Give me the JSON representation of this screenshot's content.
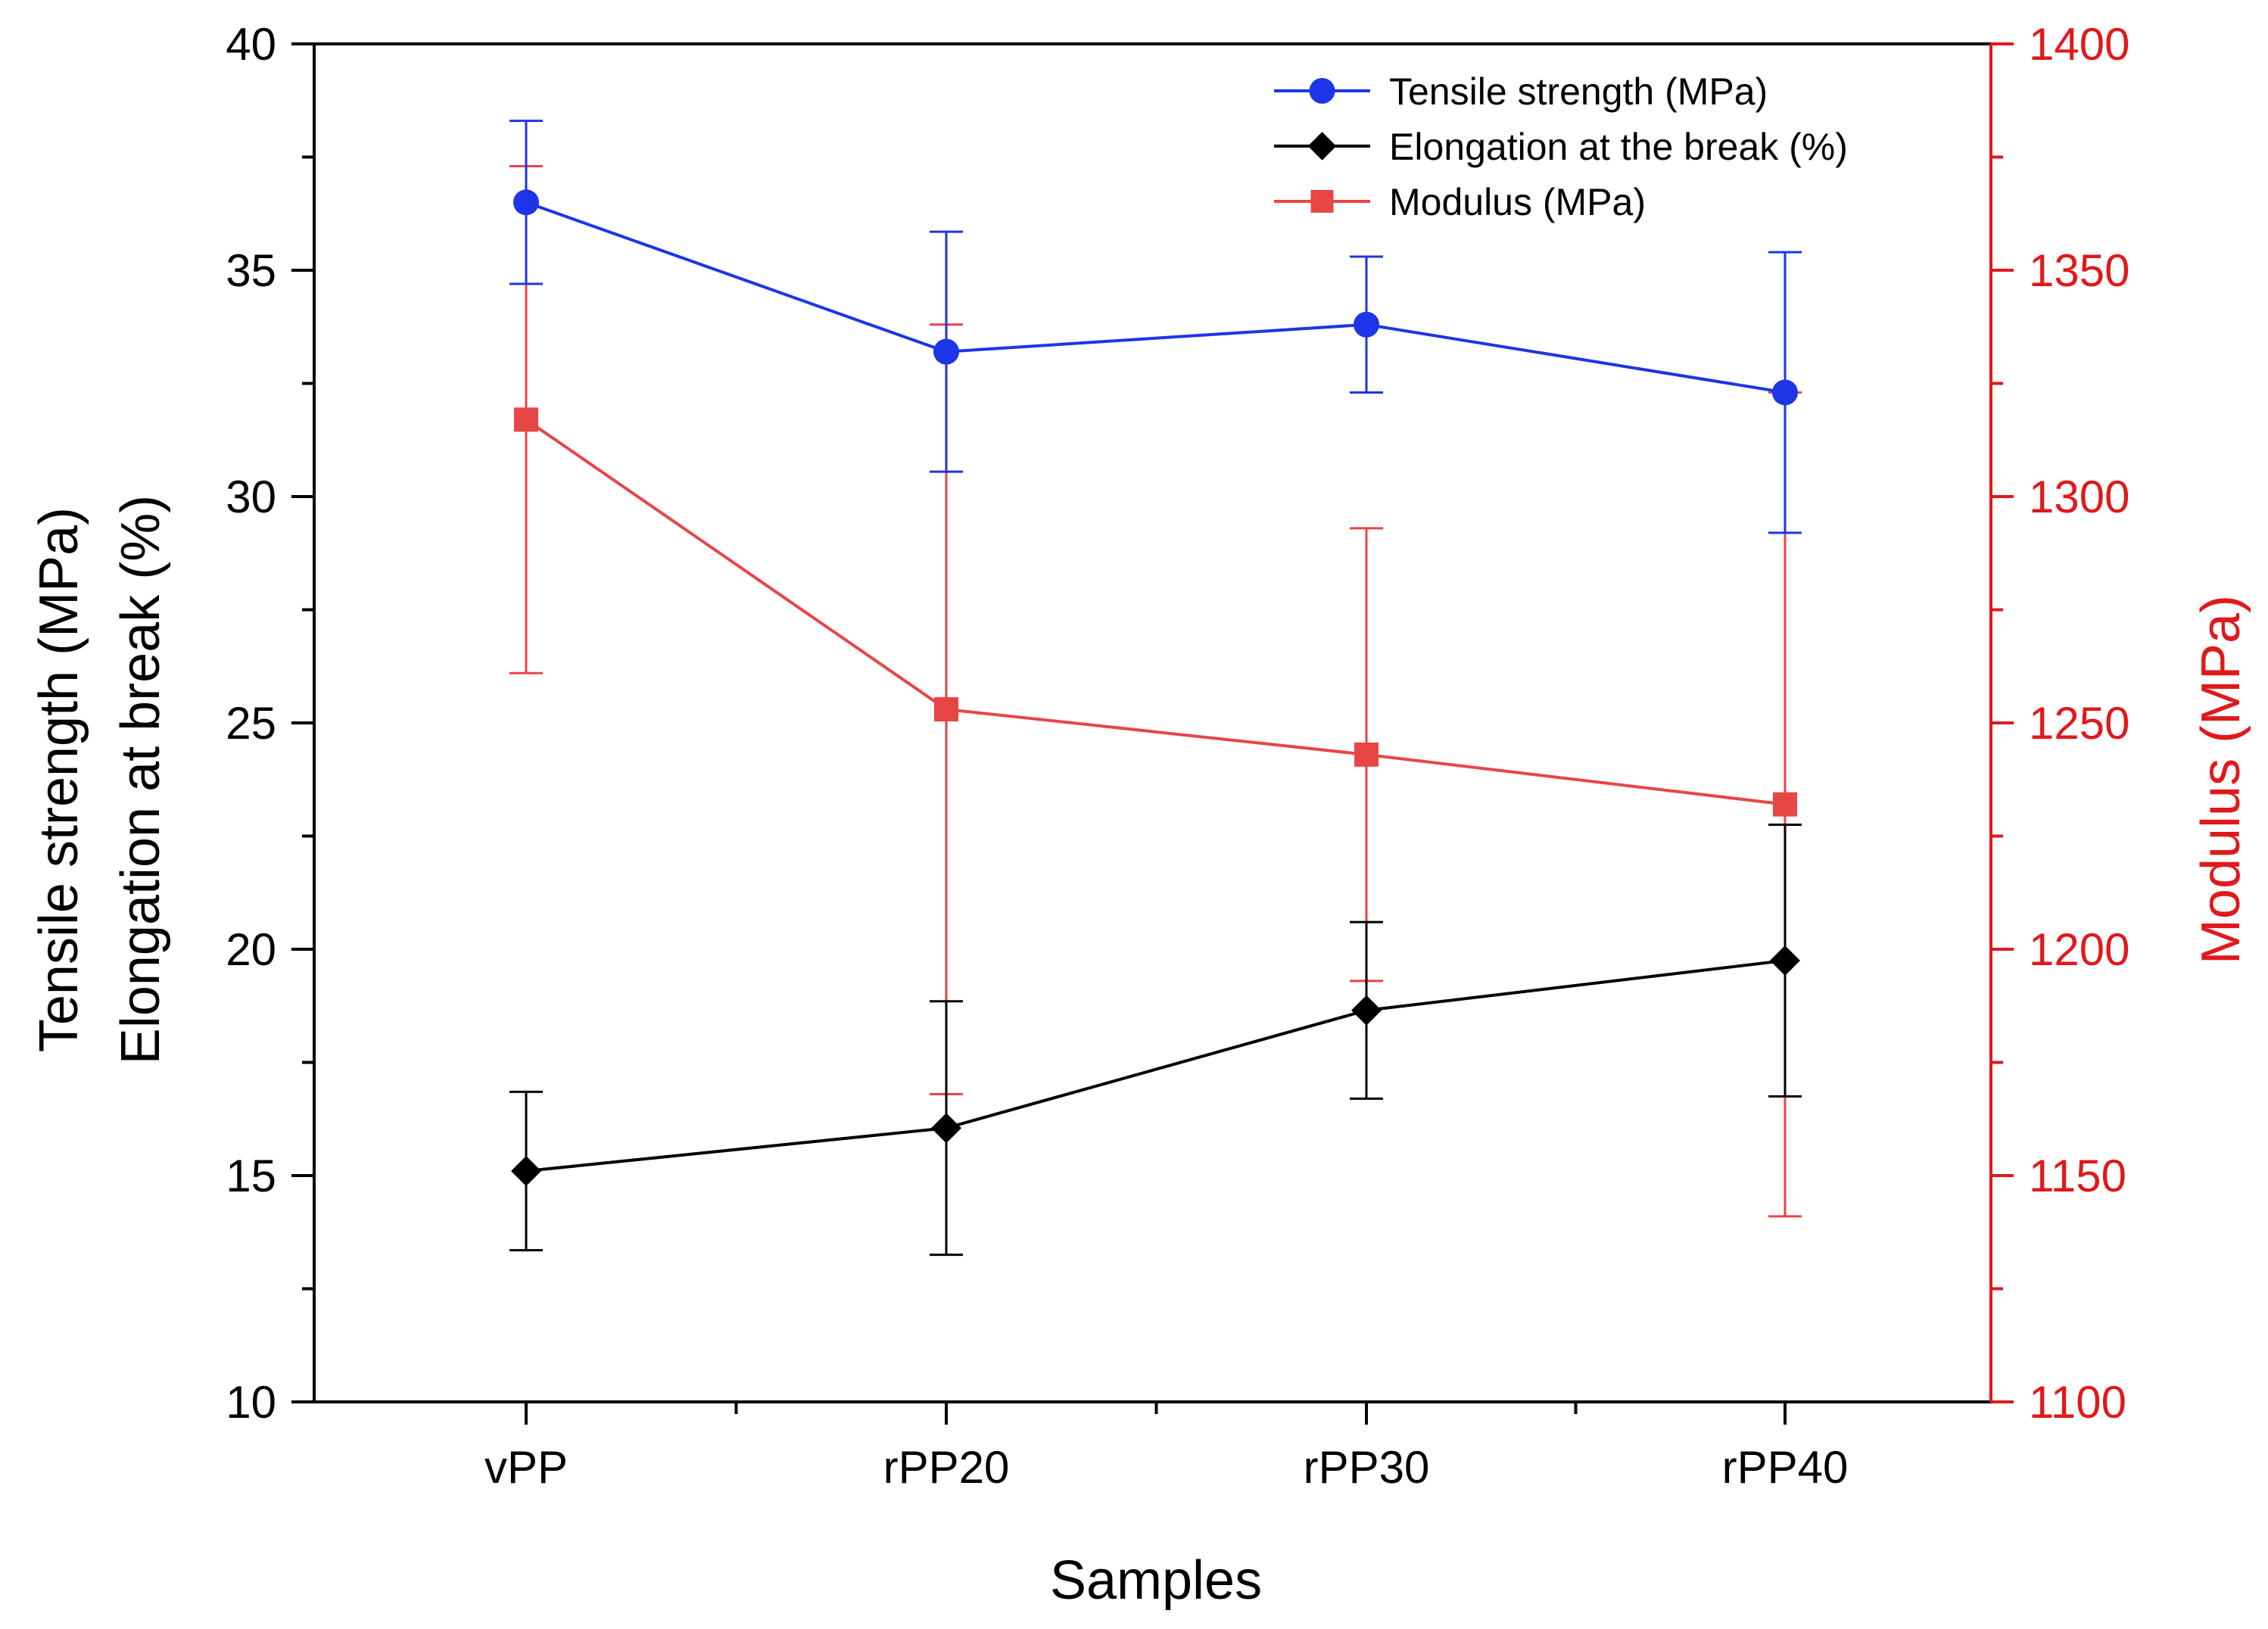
{
  "chart_data": {
    "type": "line",
    "categories": [
      "vPP",
      "rPP20",
      "rPP30",
      "rPP40"
    ],
    "xlabel": "Samples",
    "ylabel_lines": [
      "Tensile strength (MPa)",
      "Elongation at break (%)"
    ],
    "ylabel_right": "Modulus (MPa)",
    "ylim": [
      10,
      40
    ],
    "yticks": [
      10,
      15,
      20,
      25,
      30,
      35,
      40
    ],
    "ylim_right": [
      1100,
      1400
    ],
    "yticks_right": [
      1100,
      1150,
      1200,
      1250,
      1300,
      1350,
      1400
    ],
    "series": [
      {
        "name": "Tensile strength (MPa)",
        "axis": "left",
        "marker": "circle",
        "color": "#1c35e6",
        "values": [
          36.5,
          33.2,
          33.8,
          32.3
        ],
        "error": [
          1.8,
          2.65,
          1.5,
          3.1
        ]
      },
      {
        "name": "Elongation at the break (%)",
        "axis": "left",
        "marker": "diamond",
        "color": "#000000",
        "values": [
          15.1,
          16.05,
          18.65,
          19.75
        ],
        "error": [
          1.75,
          2.8,
          1.95,
          3.0
        ]
      },
      {
        "name": "Modulus (MPa)",
        "axis": "right",
        "marker": "square",
        "color": "#e84545",
        "values": [
          1317,
          1253,
          1243,
          1232
        ],
        "error": [
          56,
          85,
          50,
          91
        ]
      }
    ],
    "left_axis_color": "#000000",
    "right_axis_color": "#e0191b",
    "legend_position": "top-right"
  }
}
